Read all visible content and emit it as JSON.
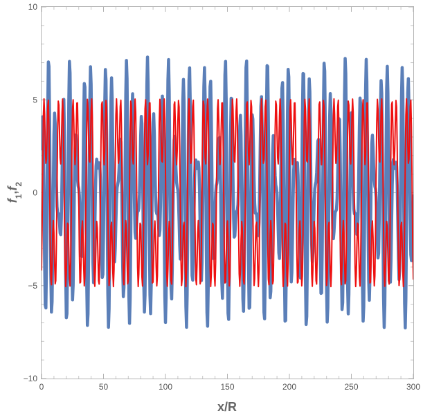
{
  "chart_data": {
    "type": "line",
    "title": "",
    "xlabel": "x/R",
    "ylabel_parts": [
      {
        "t": "f",
        "sub": false
      },
      {
        "t": "1",
        "sub": true
      },
      {
        "t": ",",
        "sub": false
      },
      {
        "t": "f",
        "sub": false
      },
      {
        "t": "2",
        "sub": true
      }
    ],
    "xlim": [
      0,
      300
    ],
    "ylim": [
      -10,
      10
    ],
    "x_ticks": [
      0,
      50,
      100,
      150,
      200,
      250,
      300
    ],
    "y_ticks": [
      -10,
      -5,
      0,
      5,
      10
    ],
    "grid": false,
    "legend": "none",
    "sample_step": 0.5,
    "series": [
      {
        "color": "#5b7fb8",
        "stroke": "thick",
        "components": [
          {
            "amplitude": 4.3,
            "period": 5.7,
            "phase": 1.57
          },
          {
            "amplitude": 3.0,
            "period": 4.2,
            "phase": -0.7
          }
        ]
      },
      {
        "color": "#ee1111",
        "stroke": "thin",
        "components": [
          {
            "amplitude": 4.2,
            "period": 11.7,
            "phase": -0.4
          },
          {
            "amplitude": 2.7,
            "period": 3.9,
            "phase": -1.2
          }
        ]
      }
    ]
  }
}
